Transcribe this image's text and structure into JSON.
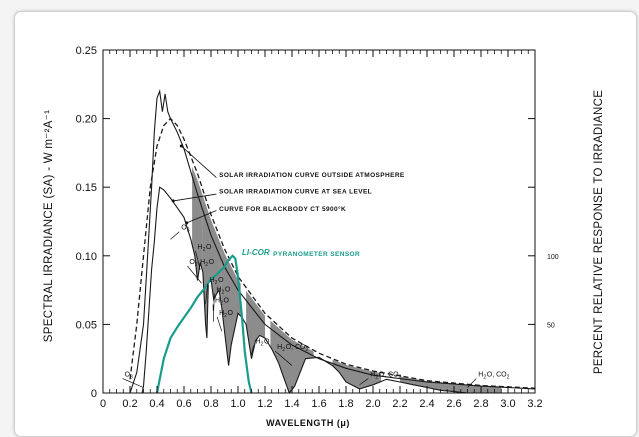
{
  "chart_data": {
    "type": "line",
    "xlabel": "WAVELENGTH   (μ)",
    "ylabel": "SPECTRAL IRRADIANCE (SA) - W m⁻²A⁻¹",
    "y2label": "PERCENT RELATIVE RESPONSE TO IRRADIANCE",
    "xlim": [
      0,
      3.2
    ],
    "ylim": [
      0,
      0.25
    ],
    "y2lim": [
      0,
      250
    ],
    "x_ticks": [
      "0",
      "0.2",
      "0.4",
      "0.6",
      "0.8",
      "1.0",
      "1.2",
      "1.4",
      "1.6",
      "1.8",
      "2.0",
      "2.2",
      "2.4",
      "2.6",
      "2.8",
      "3.0",
      "3.2"
    ],
    "y_ticks": [
      "0",
      "0.05",
      "0.10",
      "0.15",
      "0.20",
      "0.25"
    ],
    "y2_ticks": [
      "50",
      "100"
    ],
    "series": [
      {
        "name": "SOLAR IRRADIATION CURVE OUTSIDE ATMOSPHERE",
        "x": [
          0.2,
          0.25,
          0.3,
          0.33,
          0.36,
          0.38,
          0.4,
          0.42,
          0.44,
          0.46,
          0.48,
          0.5,
          0.55,
          0.6,
          0.7,
          0.8,
          0.9,
          1.0,
          1.2,
          1.4,
          1.6,
          1.8,
          2.0,
          2.4,
          2.8,
          3.2
        ],
        "y": [
          0.0,
          0.015,
          0.05,
          0.1,
          0.15,
          0.19,
          0.215,
          0.22,
          0.205,
          0.218,
          0.205,
          0.2,
          0.19,
          0.178,
          0.145,
          0.115,
          0.092,
          0.075,
          0.05,
          0.035,
          0.025,
          0.018,
          0.013,
          0.008,
          0.005,
          0.003
        ]
      },
      {
        "name": "SOLAR IRRADIATION CURVE AT SEA LEVEL",
        "x": [
          0.29,
          0.3,
          0.32,
          0.34,
          0.36,
          0.38,
          0.4,
          0.42,
          0.45,
          0.5,
          0.55,
          0.6,
          0.65,
          0.68,
          0.7,
          0.72,
          0.74,
          0.76,
          0.77,
          0.78,
          0.8,
          0.82,
          0.84,
          0.86,
          0.88,
          0.9,
          0.93,
          0.95,
          1.0,
          1.03,
          1.06,
          1.1,
          1.13,
          1.16,
          1.2,
          1.25,
          1.3,
          1.35,
          1.38,
          1.42,
          1.5,
          1.6,
          1.7,
          1.75,
          1.8,
          1.9,
          2.0,
          2.1,
          2.2,
          2.3,
          2.4,
          2.5,
          2.6,
          2.7,
          2.8,
          3.0,
          3.2
        ],
        "y": [
          0.0,
          0.005,
          0.03,
          0.06,
          0.09,
          0.11,
          0.135,
          0.15,
          0.148,
          0.142,
          0.135,
          0.128,
          0.112,
          0.1,
          0.082,
          0.095,
          0.088,
          0.05,
          0.04,
          0.08,
          0.083,
          0.068,
          0.072,
          0.075,
          0.062,
          0.045,
          0.02,
          0.035,
          0.058,
          0.055,
          0.05,
          0.025,
          0.038,
          0.042,
          0.04,
          0.032,
          0.022,
          0.008,
          0.0,
          0.005,
          0.025,
          0.026,
          0.02,
          0.015,
          0.008,
          0.003,
          0.006,
          0.01,
          0.008,
          0.006,
          0.004,
          0.002,
          0.001,
          0.0,
          0.0,
          0.0,
          0.0
        ]
      },
      {
        "name": "CURVE FOR BLACKBODY CT 5900°K",
        "x": [
          0.2,
          0.25,
          0.3,
          0.35,
          0.4,
          0.45,
          0.5,
          0.55,
          0.6,
          0.7,
          0.8,
          0.9,
          1.0,
          1.2,
          1.4,
          1.6,
          1.8,
          2.0,
          2.4,
          2.8,
          3.2
        ],
        "y": [
          0.01,
          0.05,
          0.1,
          0.15,
          0.18,
          0.195,
          0.2,
          0.195,
          0.185,
          0.16,
          0.13,
          0.105,
          0.085,
          0.058,
          0.04,
          0.029,
          0.021,
          0.016,
          0.009,
          0.0055,
          0.0035
        ]
      },
      {
        "name": "PYRANOMETER SENSOR",
        "axis": "right",
        "x": [
          0.4,
          0.42,
          0.45,
          0.5,
          0.55,
          0.6,
          0.65,
          0.7,
          0.75,
          0.8,
          0.85,
          0.9,
          0.93,
          0.96,
          0.98,
          1.0,
          1.03,
          1.05,
          1.08,
          1.1
        ],
        "y": [
          0,
          10,
          25,
          40,
          48,
          55,
          62,
          70,
          76,
          83,
          87,
          92,
          97,
          100,
          98,
          85,
          55,
          30,
          8,
          0
        ]
      }
    ],
    "annotations": {
      "outside_atmosphere": "SOLAR IRRADIATION CURVE OUTSIDE ATMOSPHERE",
      "sea_level": "SOLAR IRRADIATION CURVE AT SEA LEVEL",
      "blackbody": "CURVE FOR BLACKBODY CT 5900°K",
      "sensor": "PYRANOMETER SENSOR",
      "brand": "LI-COR"
    },
    "absorption_labels": [
      "O3",
      "H2O",
      "O2  H2O",
      "H2O",
      "H2O",
      "H2O",
      "H2O",
      "H2O",
      "H2O, CO2",
      "H2O, CO2",
      "H2O, CO2",
      "O3"
    ],
    "colors": {
      "curve": "#1a1a1a",
      "absorption_fill": "#808080",
      "sensor": "#1a9c8c"
    },
    "grid": false,
    "legend": "none"
  }
}
